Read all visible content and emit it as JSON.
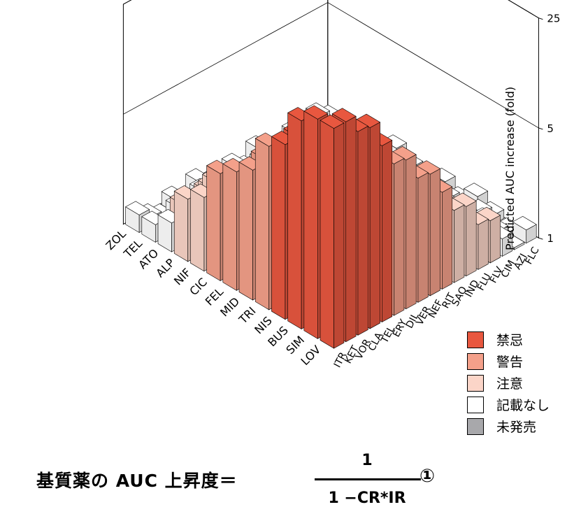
{
  "chart_data": {
    "type": "bar3d",
    "title": "",
    "zlabel": "Predicted AUC increase (fold)",
    "z_scale": "log",
    "z_ticks": [
      "1",
      "5",
      "25"
    ],
    "z_range": [
      1,
      25
    ],
    "substrates": [
      "LOV",
      "SIM",
      "BUS",
      "NIS",
      "TRI",
      "MID",
      "FEL",
      "CIC",
      "NIF",
      "ALP",
      "ATO",
      "TEL",
      "ZOL"
    ],
    "inhibitors": [
      "ITR",
      "KET",
      "VOR",
      "CLA",
      "TEL",
      "ERY",
      "DIL",
      "VER",
      "NEF",
      "RIT",
      "SAQ",
      "IND",
      "FLU",
      "FLV",
      "CIM",
      "AZI",
      "FLC"
    ],
    "categories": [
      "禁忌",
      "警告",
      "注意",
      "記載なし",
      "未発売"
    ],
    "colors": {
      "禁忌": "#e8573f",
      "警告": "#f4a08a",
      "注意": "#fbd5c8",
      "記載なし": "#ffffff",
      "未発売": "#a8a8ab"
    },
    "grid": true,
    "legend_position": "right"
  },
  "legend": [
    {
      "label": "禁忌",
      "color": "#e8573f"
    },
    {
      "label": "警告",
      "color": "#f4a08a"
    },
    {
      "label": "注意",
      "color": "#fbd5c8"
    },
    {
      "label": "記載なし",
      "color": "#ffffff"
    },
    {
      "label": "未発売",
      "color": "#a8a8ab"
    }
  ],
  "formula": {
    "lhs": "基質薬の AUC 上昇度＝",
    "numerator": "1",
    "denominator": "1 −CR*IR",
    "tag": "①"
  }
}
